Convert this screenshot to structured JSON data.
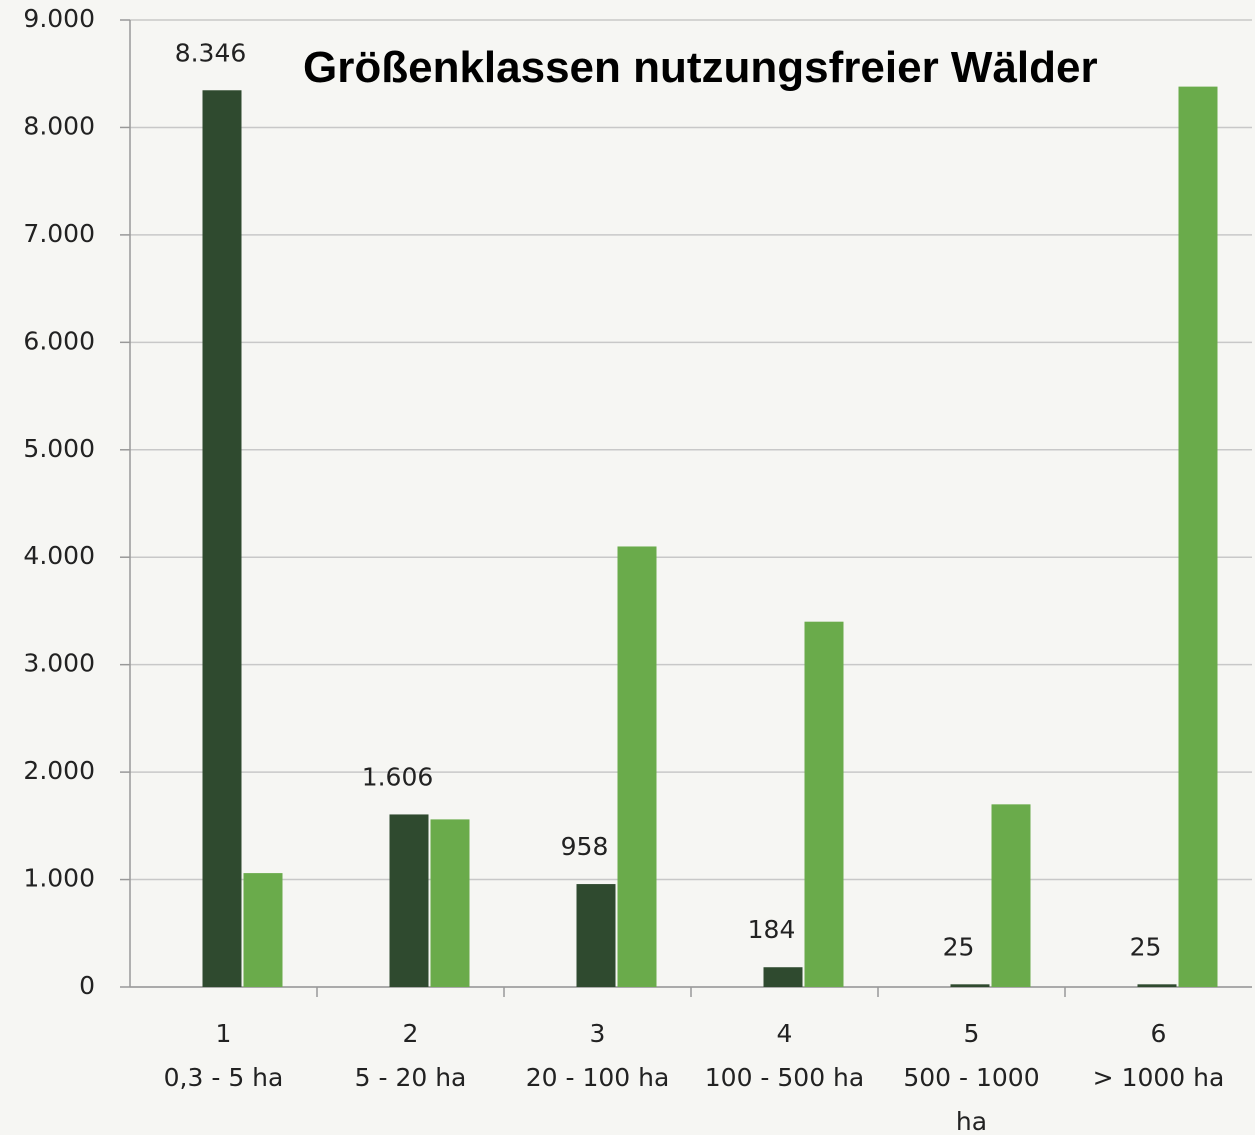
{
  "chart_data": {
    "type": "bar",
    "title": "Größenklassen nutzungsfreier Wälder",
    "categories": [
      [
        "1",
        "0,3 - 5 ha"
      ],
      [
        "2",
        "5 - 20 ha"
      ],
      [
        "3",
        "20 - 100 ha"
      ],
      [
        "4",
        "100 - 500 ha"
      ],
      [
        "5",
        "500 - 1000",
        "ha"
      ],
      [
        "6",
        "> 1000 ha"
      ]
    ],
    "series": [
      {
        "color": "#2f4a2f",
        "values": [
          8346,
          1606,
          958,
          184,
          25,
          25
        ],
        "value_labels": [
          "8.346",
          "1.606",
          "958",
          "184",
          "25",
          "25"
        ]
      },
      {
        "color": "#6aab4b",
        "values": [
          1060,
          1560,
          4100,
          3400,
          1700,
          8380
        ]
      }
    ],
    "ylim": [
      0,
      9000
    ],
    "yticks": [
      0,
      {
        "value": 1000,
        "label": "1.000"
      },
      {
        "value": 2000,
        "label": "2.000"
      },
      {
        "value": 3000,
        "label": "3.000"
      },
      {
        "value": 4000,
        "label": "4.000"
      },
      {
        "value": 5000,
        "label": "5.000"
      },
      {
        "value": 6000,
        "label": "6.000"
      },
      {
        "value": 7000,
        "label": "7.000"
      },
      {
        "value": 8000,
        "label": "8.000"
      },
      {
        "value": 9000,
        "label": "9.000"
      }
    ],
    "grid": true
  }
}
